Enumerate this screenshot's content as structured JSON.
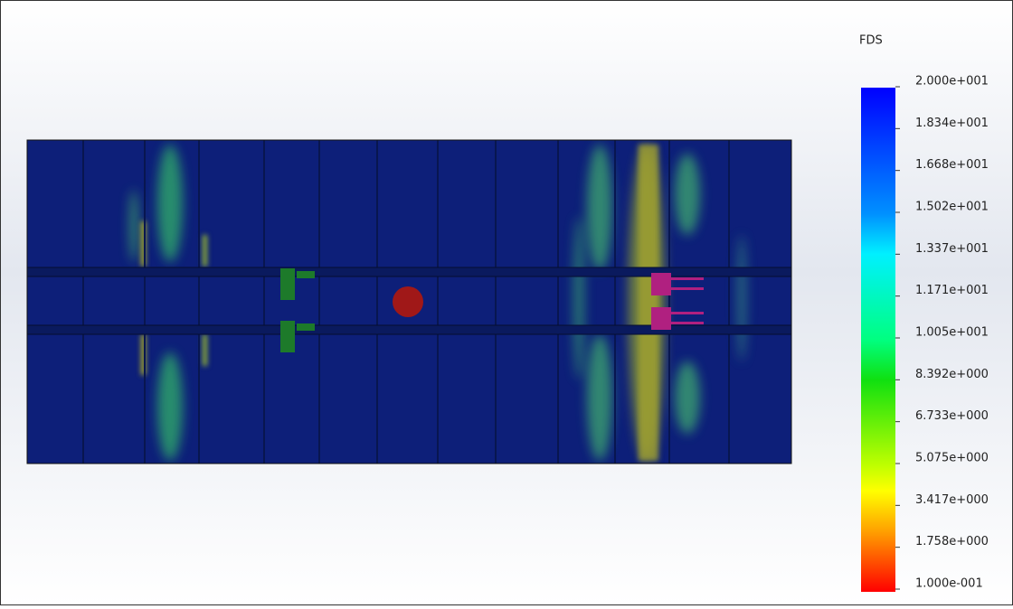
{
  "legend": {
    "title": "FDS",
    "labels": [
      "2.000e+001",
      "1.834e+001",
      "1.668e+001",
      "1.502e+001",
      "1.337e+001",
      "1.171e+001",
      "1.005e+001",
      "8.392e+000",
      "6.733e+000",
      "5.075e+000",
      "3.417e+000",
      "1.758e+000",
      "1.000e-001"
    ]
  }
}
